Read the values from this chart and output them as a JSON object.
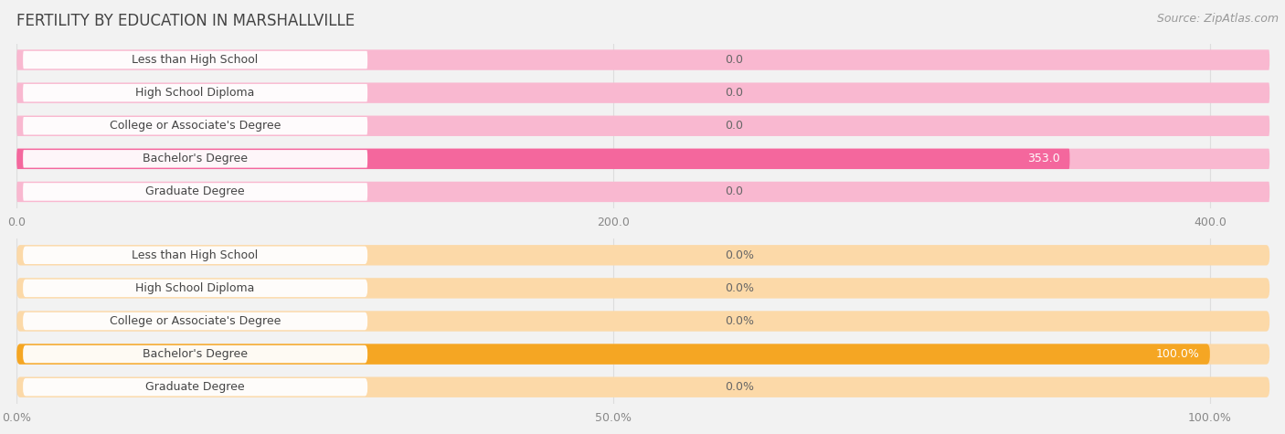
{
  "title": "FERTILITY BY EDUCATION IN MARSHALLVILLE",
  "source": "Source: ZipAtlas.com",
  "top_chart": {
    "categories": [
      "Less than High School",
      "High School Diploma",
      "College or Associate's Degree",
      "Bachelor's Degree",
      "Graduate Degree"
    ],
    "values": [
      0.0,
      0.0,
      0.0,
      353.0,
      0.0
    ],
    "bar_color_active": "#f4679d",
    "bar_color_inactive": "#f9b8d0",
    "value_labels": [
      "0.0",
      "0.0",
      "0.0",
      "353.0",
      "0.0"
    ],
    "xlim": [
      0,
      420
    ],
    "xticks": [
      0.0,
      200.0,
      400.0
    ],
    "xticklabels": [
      "0.0",
      "200.0",
      "400.0"
    ]
  },
  "bottom_chart": {
    "categories": [
      "Less than High School",
      "High School Diploma",
      "College or Associate's Degree",
      "Bachelor's Degree",
      "Graduate Degree"
    ],
    "values": [
      0.0,
      0.0,
      0.0,
      100.0,
      0.0
    ],
    "bar_color_active": "#f5a623",
    "bar_color_inactive": "#fcd9a8",
    "value_labels": [
      "0.0%",
      "0.0%",
      "0.0%",
      "100.0%",
      "0.0%"
    ],
    "xlim": [
      0,
      105
    ],
    "xticks": [
      0.0,
      50.0,
      100.0
    ],
    "xticklabels": [
      "0.0%",
      "50.0%",
      "100.0%"
    ]
  },
  "bg_color": "#f2f2f2",
  "title_fontsize": 12,
  "label_fontsize": 9,
  "tick_fontsize": 9,
  "source_fontsize": 9
}
